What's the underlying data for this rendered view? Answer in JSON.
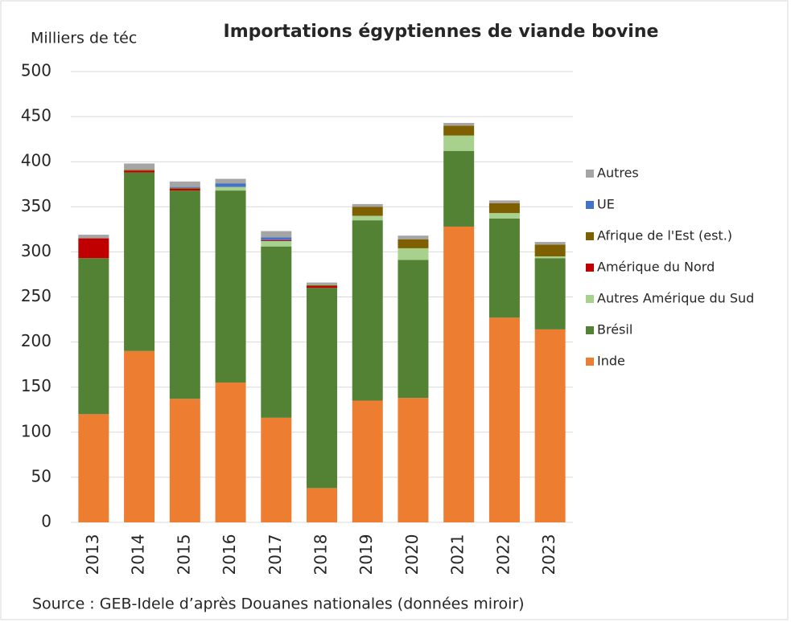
{
  "chart_data": {
    "type": "stacked-bar",
    "title": "Importations égyptiennes de viande bovine",
    "y_label": "Milliers de téc",
    "source": "Source : GEB-Idele d’après Douanes nationales (données miroir)",
    "categories": [
      "2013",
      "2014",
      "2015",
      "2016",
      "2017",
      "2018",
      "2019",
      "2020",
      "2021",
      "2022",
      "2023"
    ],
    "series": [
      {
        "name": "Inde",
        "color": "#ED7D31",
        "values": [
          120,
          190,
          137,
          155,
          116,
          38,
          135,
          138,
          328,
          227,
          214
        ]
      },
      {
        "name": "Brésil",
        "color": "#548235",
        "values": [
          173,
          198,
          231,
          213,
          190,
          222,
          200,
          153,
          84,
          110,
          79
        ]
      },
      {
        "name": "Autres Amérique du Sud",
        "color": "#A9D18E",
        "values": [
          0,
          0,
          0,
          4,
          6,
          0,
          5,
          13,
          17,
          6,
          2
        ]
      },
      {
        "name": "Amérique du Nord",
        "color": "#C00000",
        "values": [
          22,
          2,
          2,
          0,
          1,
          2,
          0,
          0,
          0,
          0,
          0
        ]
      },
      {
        "name": "Afrique de l'Est (est.)",
        "color": "#7F6000",
        "values": [
          0,
          1,
          1,
          0,
          0,
          1,
          10,
          10,
          11,
          11,
          13
        ]
      },
      {
        "name": "UE",
        "color": "#4472C4",
        "values": [
          0,
          0,
          1,
          4,
          3,
          0,
          0,
          0,
          0,
          0,
          0
        ]
      },
      {
        "name": "Autres",
        "color": "#A5A5A5",
        "values": [
          4,
          7,
          6,
          5,
          7,
          3,
          3,
          4,
          3,
          3,
          3
        ]
      }
    ],
    "ylim": [
      0,
      500
    ],
    "yticks": [
      0,
      50,
      100,
      150,
      200,
      250,
      300,
      350,
      400,
      450,
      500
    ],
    "grid": true,
    "legend": "right"
  }
}
